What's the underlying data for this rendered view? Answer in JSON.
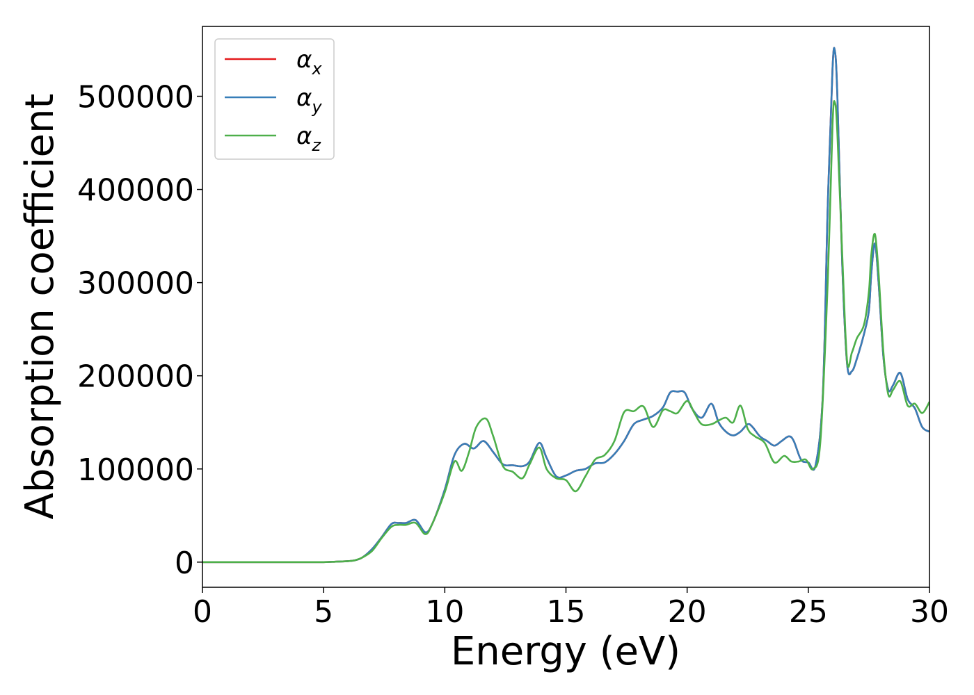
{
  "chart_data": {
    "type": "line",
    "title": "",
    "xlabel": "Energy (eV)",
    "ylabel": "Absorption coefficient",
    "xlim": [
      0,
      30
    ],
    "ylim": [
      -27000,
      575000
    ],
    "x_ticks": [
      0,
      5,
      10,
      15,
      20,
      25,
      30
    ],
    "y_ticks": [
      0,
      100000,
      200000,
      300000,
      400000,
      500000
    ],
    "grid": false,
    "legend_position": "upper left",
    "series": [
      {
        "name": "α_x",
        "symbol": "α",
        "subscript": "x",
        "color": "#e41a1c",
        "x": [
          0,
          2,
          4,
          5,
          5.5,
          6,
          6.3,
          6.6,
          7,
          7.4,
          7.8,
          8.1,
          8.4,
          8.8,
          9.2,
          9.5,
          10,
          10.4,
          10.8,
          11.2,
          11.6,
          12,
          12.4,
          12.8,
          13.2,
          13.5,
          13.9,
          14.2,
          14.6,
          15,
          15.4,
          15.8,
          16.2,
          16.6,
          17,
          17.4,
          17.8,
          18.2,
          18.6,
          19,
          19.3,
          19.6,
          19.9,
          20.2,
          20.6,
          21,
          21.3,
          21.6,
          21.9,
          22.2,
          22.5,
          22.7,
          23,
          23.3,
          23.6,
          23.9,
          24.2,
          24.4,
          24.7,
          25,
          25.3,
          25.6,
          25.8,
          26,
          26.1,
          26.2,
          26.4,
          26.6,
          26.8,
          27,
          27.3,
          27.5,
          27.6,
          27.75,
          27.9,
          28.1,
          28.3,
          28.5,
          28.8,
          29.1,
          29.4,
          29.7,
          30
        ],
        "y": [
          0,
          0,
          0,
          0,
          500,
          1000,
          2000,
          5000,
          14000,
          27000,
          41000,
          42000,
          42000,
          45000,
          32000,
          42000,
          78000,
          115000,
          127000,
          122000,
          130000,
          118000,
          105000,
          104000,
          103000,
          108000,
          128000,
          112000,
          92000,
          93000,
          98000,
          100000,
          106000,
          107000,
          116000,
          130000,
          148000,
          153000,
          157000,
          166000,
          182000,
          183000,
          182000,
          165000,
          155000,
          170000,
          150000,
          140000,
          136000,
          140000,
          148000,
          145000,
          135000,
          130000,
          125000,
          130000,
          135000,
          130000,
          110000,
          107000,
          104000,
          180000,
          380000,
          530000,
          548000,
          500000,
          320000,
          213000,
          205000,
          218000,
          245000,
          270000,
          310000,
          342000,
          300000,
          220000,
          185000,
          190000,
          203000,
          175000,
          165000,
          145000,
          140000
        ]
      },
      {
        "name": "α_y",
        "symbol": "α",
        "subscript": "y",
        "color": "#377eb8",
        "x": [
          0,
          2,
          4,
          5,
          5.5,
          6,
          6.3,
          6.6,
          7,
          7.4,
          7.8,
          8.1,
          8.4,
          8.8,
          9.2,
          9.5,
          10,
          10.4,
          10.8,
          11.2,
          11.6,
          12,
          12.4,
          12.8,
          13.2,
          13.5,
          13.9,
          14.2,
          14.6,
          15,
          15.4,
          15.8,
          16.2,
          16.6,
          17,
          17.4,
          17.8,
          18.2,
          18.6,
          19,
          19.3,
          19.6,
          19.9,
          20.2,
          20.6,
          21,
          21.3,
          21.6,
          21.9,
          22.2,
          22.5,
          22.7,
          23,
          23.3,
          23.6,
          23.9,
          24.2,
          24.4,
          24.7,
          25,
          25.3,
          25.6,
          25.8,
          26,
          26.1,
          26.2,
          26.4,
          26.6,
          26.8,
          27,
          27.3,
          27.5,
          27.6,
          27.75,
          27.9,
          28.1,
          28.3,
          28.5,
          28.8,
          29.1,
          29.4,
          29.7,
          30
        ],
        "y": [
          0,
          0,
          0,
          0,
          500,
          1000,
          2000,
          5000,
          14000,
          27000,
          41000,
          42000,
          42000,
          45000,
          32000,
          42000,
          78000,
          115000,
          127000,
          122000,
          130000,
          118000,
          105000,
          104000,
          103000,
          108000,
          128000,
          112000,
          92000,
          93000,
          98000,
          100000,
          106000,
          107000,
          116000,
          130000,
          148000,
          153000,
          157000,
          166000,
          182000,
          183000,
          182000,
          165000,
          155000,
          170000,
          150000,
          140000,
          136000,
          140000,
          148000,
          145000,
          135000,
          130000,
          125000,
          130000,
          135000,
          130000,
          110000,
          107000,
          104000,
          180000,
          380000,
          530000,
          548000,
          500000,
          320000,
          213000,
          205000,
          218000,
          245000,
          270000,
          310000,
          342000,
          300000,
          220000,
          185000,
          190000,
          203000,
          175000,
          165000,
          145000,
          140000
        ]
      },
      {
        "name": "α_z",
        "symbol": "α",
        "subscript": "z",
        "color": "#4daf4a",
        "x": [
          0,
          2,
          4,
          5,
          5.5,
          6,
          6.3,
          6.6,
          7,
          7.4,
          7.8,
          8.1,
          8.4,
          8.8,
          9.2,
          9.5,
          10,
          10.4,
          10.7,
          11,
          11.3,
          11.7,
          12,
          12.4,
          12.8,
          13.2,
          13.5,
          13.9,
          14.2,
          14.6,
          15,
          15.4,
          15.8,
          16.2,
          16.6,
          17,
          17.4,
          17.8,
          18.2,
          18.6,
          19,
          19.3,
          19.6,
          20,
          20.3,
          20.6,
          21,
          21.3,
          21.6,
          21.9,
          22.2,
          22.5,
          22.8,
          23.2,
          23.6,
          24,
          24.3,
          24.6,
          24.9,
          25.2,
          25.5,
          25.8,
          26,
          26.1,
          26.2,
          26.4,
          26.6,
          26.8,
          27,
          27.3,
          27.5,
          27.6,
          27.75,
          27.9,
          28.1,
          28.3,
          28.5,
          28.8,
          29.1,
          29.4,
          29.7,
          30
        ],
        "y": [
          0,
          0,
          0,
          0,
          500,
          1000,
          2000,
          5000,
          12000,
          26000,
          38000,
          40000,
          40000,
          42000,
          30000,
          42000,
          75000,
          108000,
          98000,
          118000,
          145000,
          154000,
          135000,
          103000,
          97000,
          90000,
          105000,
          123000,
          100000,
          90000,
          88000,
          76000,
          92000,
          110000,
          115000,
          130000,
          161000,
          162000,
          167000,
          145000,
          163000,
          162000,
          160000,
          173000,
          160000,
          148000,
          148000,
          152000,
          155000,
          150000,
          168000,
          143000,
          135000,
          128000,
          107000,
          114000,
          108000,
          108000,
          110000,
          100000,
          130000,
          300000,
          470000,
          493000,
          460000,
          330000,
          216000,
          225000,
          240000,
          255000,
          290000,
          330000,
          352000,
          310000,
          225000,
          180000,
          185000,
          194000,
          168000,
          170000,
          160000,
          172000
        ]
      }
    ]
  }
}
